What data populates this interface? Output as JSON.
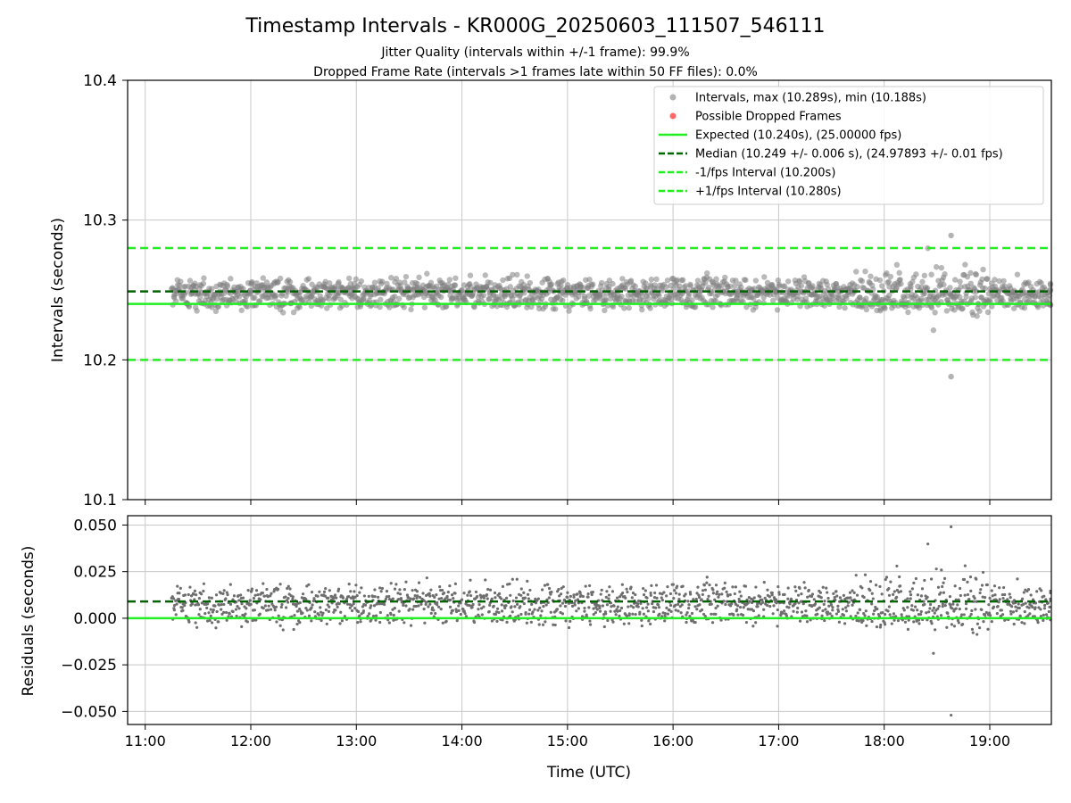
{
  "title": "Timestamp Intervals - KR000G_20250603_111507_546111",
  "subtitle_1": "Jitter Quality (intervals within +/-1 frame): 99.9%",
  "subtitle_2": "Dropped Frame Rate (intervals >1 frames late within 50 FF files): 0.0%",
  "colors": {
    "points": "#808080",
    "dropped": "#ff4444",
    "expected": "#22ee22",
    "median": "#006400",
    "fps_band": "#22ee22",
    "grid": "#c8c8c8"
  },
  "chart_data": [
    {
      "type": "scatter",
      "ylabel": "Intervals (seconds)",
      "xlim": [
        "10:50",
        "19:35"
      ],
      "ylim": [
        10.1,
        10.4
      ],
      "y_ticks": [
        "10.1",
        "10.2",
        "10.3",
        "10.4"
      ],
      "grid": true,
      "legend_position": "top-right",
      "legend": [
        "Intervals, max (10.289s), min (10.188s)",
        "Possible Dropped Frames",
        "Expected (10.240s), (25.00000 fps)",
        "Median (10.249 +/- 0.006 s), (24.97893 +/- 0.01 fps)",
        "-1/fps Interval (10.200s)",
        "+1/fps Interval (10.280s)"
      ],
      "lines": [
        {
          "name": "expected",
          "y": 10.24,
          "style": "solid"
        },
        {
          "name": "median",
          "y": 10.249,
          "style": "dashed"
        },
        {
          "name": "minus_1_fps",
          "y": 10.2,
          "style": "dashed"
        },
        {
          "name": "plus_1_fps",
          "y": 10.28,
          "style": "dashed"
        }
      ],
      "series": [
        {
          "values_summary": {
            "x_range": [
              "11:15",
              "19:36"
            ],
            "center": 10.249,
            "band": [
              10.238,
              10.258
            ],
            "max": {
              "x": "18:38",
              "y": 10.289
            },
            "min": {
              "x": "18:38",
              "y": 10.188
            }
          }
        }
      ]
    },
    {
      "type": "scatter",
      "ylabel": "Residuals (seconds)",
      "xlabel": "Time (UTC)",
      "xlim": [
        "10:50",
        "19:35"
      ],
      "ylim": [
        -0.057,
        0.055
      ],
      "y_ticks": [
        "−0.050",
        "−0.025",
        "0.000",
        "0.025",
        "0.050"
      ],
      "x_ticks": [
        "11:00",
        "12:00",
        "13:00",
        "14:00",
        "15:00",
        "16:00",
        "17:00",
        "18:00",
        "19:00"
      ],
      "grid": true,
      "lines": [
        {
          "name": "expected",
          "y": 0.0,
          "style": "solid"
        },
        {
          "name": "median",
          "y": 0.009,
          "style": "dashed"
        }
      ],
      "series": [
        {
          "values_summary": {
            "x_range": [
              "11:15",
              "19:36"
            ],
            "center": 0.009,
            "max": {
              "x": "18:38",
              "y": 0.049
            },
            "min": {
              "x": "18:38",
              "y": -0.052
            }
          }
        }
      ]
    }
  ]
}
